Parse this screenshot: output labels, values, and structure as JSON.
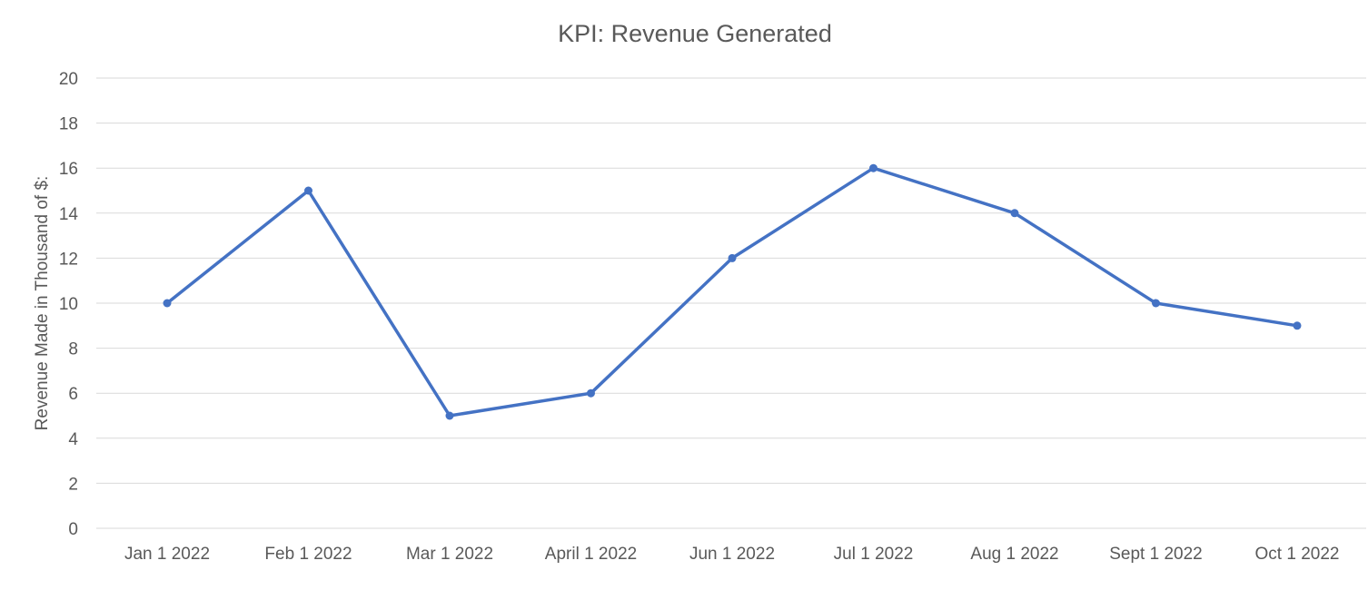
{
  "chart_data": {
    "type": "line",
    "title": "KPI: Revenue Generated",
    "xlabel": "",
    "ylabel": "Revenue Made in Thousand of $:",
    "categories": [
      "Jan 1 2022",
      "Feb 1 2022",
      "Mar 1 2022",
      "April 1 2022",
      "Jun 1 2022",
      "Jul 1 2022",
      "Aug 1 2022",
      "Sept 1 2022",
      "Oct 1 2022"
    ],
    "series": [
      {
        "values": [
          10,
          15,
          5,
          6,
          12,
          16,
          14,
          10,
          9
        ]
      }
    ],
    "ylim": [
      0,
      20
    ],
    "yticks": [
      0,
      2,
      4,
      6,
      8,
      10,
      12,
      14,
      16,
      18,
      20
    ],
    "grid": true,
    "legend": "none",
    "line_color": "#4472c4",
    "grid_color": "#d9d9d9",
    "text_color": "#595959"
  }
}
